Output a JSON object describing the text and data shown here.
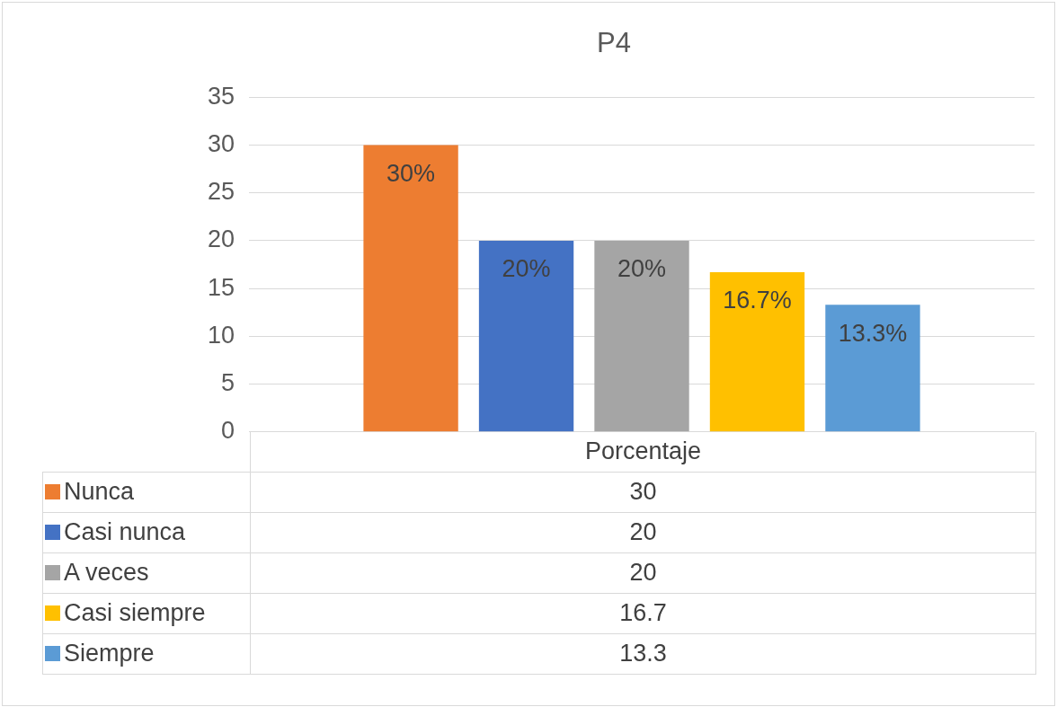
{
  "chart_data": {
    "type": "bar",
    "title": "P4",
    "categories": [
      "Porcentaje"
    ],
    "series": [
      {
        "name": "Nunca",
        "color": "#ed7d31",
        "values": [
          30
        ],
        "value_labels": [
          "30%"
        ]
      },
      {
        "name": "Casi nunca",
        "color": "#4472c4",
        "values": [
          20
        ],
        "value_labels": [
          "20%"
        ]
      },
      {
        "name": "A veces",
        "color": "#a5a5a5",
        "values": [
          20
        ],
        "value_labels": [
          "20%"
        ]
      },
      {
        "name": "Casi siempre",
        "color": "#ffc000",
        "values": [
          16.7
        ],
        "value_labels": [
          "16.7%"
        ]
      },
      {
        "name": "Siempre",
        "color": "#5b9bd5",
        "values": [
          13.3
        ],
        "value_labels": [
          "13.3%"
        ]
      }
    ],
    "ylim": [
      0,
      35
    ],
    "yticks": [
      0,
      5,
      10,
      15,
      20,
      25,
      30,
      35
    ],
    "grid": "y",
    "legend": "bottom",
    "annotations": [
      "30",
      "20",
      "20",
      "16.7",
      "13.3"
    ]
  }
}
